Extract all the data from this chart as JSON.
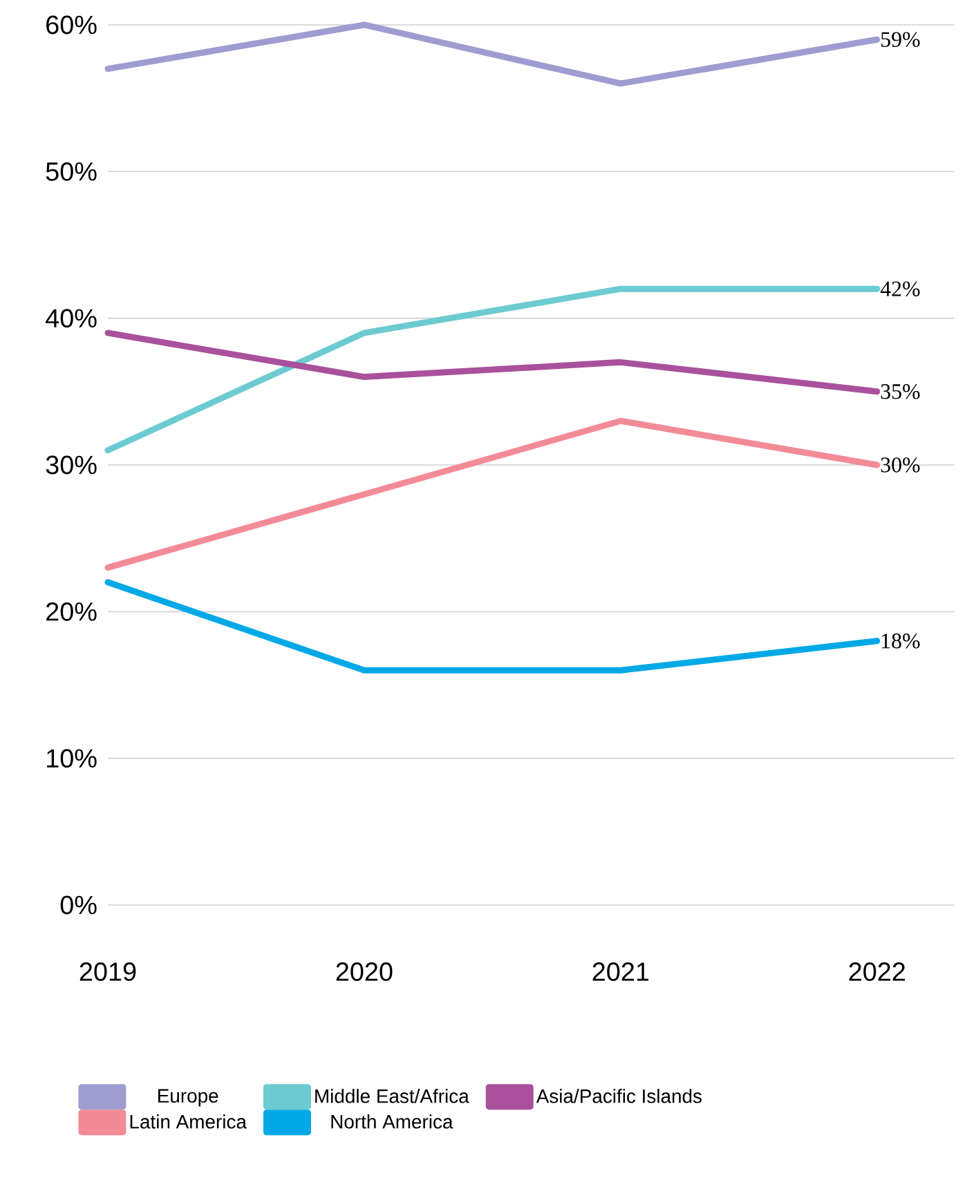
{
  "chart_data": {
    "type": "line",
    "categories": [
      "2019",
      "2020",
      "2021",
      "2022"
    ],
    "series": [
      {
        "name": "Europe",
        "color": "#9e9cd0",
        "values": [
          57,
          60,
          56,
          59
        ],
        "value_labels": [
          null,
          null,
          null,
          "59%"
        ]
      },
      {
        "name": "Middle East/Africa",
        "color": "#6ccbd0",
        "values": [
          31,
          39,
          42,
          42
        ],
        "value_labels": [
          null,
          null,
          null,
          "42%"
        ]
      },
      {
        "name": "Asia/Pacific Islands",
        "color": "#a9519c",
        "values": [
          39,
          36,
          37,
          35
        ],
        "value_labels": [
          null,
          null,
          null,
          "35%"
        ]
      },
      {
        "name": "Latin America",
        "color": "#f28b96",
        "values": [
          23,
          28,
          33,
          30
        ],
        "value_labels": [
          null,
          null,
          null,
          "30%"
        ]
      },
      {
        "name": "North America",
        "color": "#00a9e6",
        "values": [
          22,
          16,
          16,
          18
        ],
        "value_labels": [
          null,
          null,
          null,
          "18%"
        ]
      }
    ],
    "ylim": [
      0,
      60
    ],
    "yticks": [
      {
        "value": 0,
        "label": "0%"
      },
      {
        "value": 10,
        "label": "10%"
      },
      {
        "value": 20,
        "label": "20%"
      },
      {
        "value": 30,
        "label": "30%"
      },
      {
        "value": 40,
        "label": "40%"
      },
      {
        "value": 50,
        "label": "50%"
      },
      {
        "value": 60,
        "label": "60%"
      }
    ],
    "grid": "y",
    "legend": "bottom",
    "marker": "none",
    "line_style": "solid"
  }
}
